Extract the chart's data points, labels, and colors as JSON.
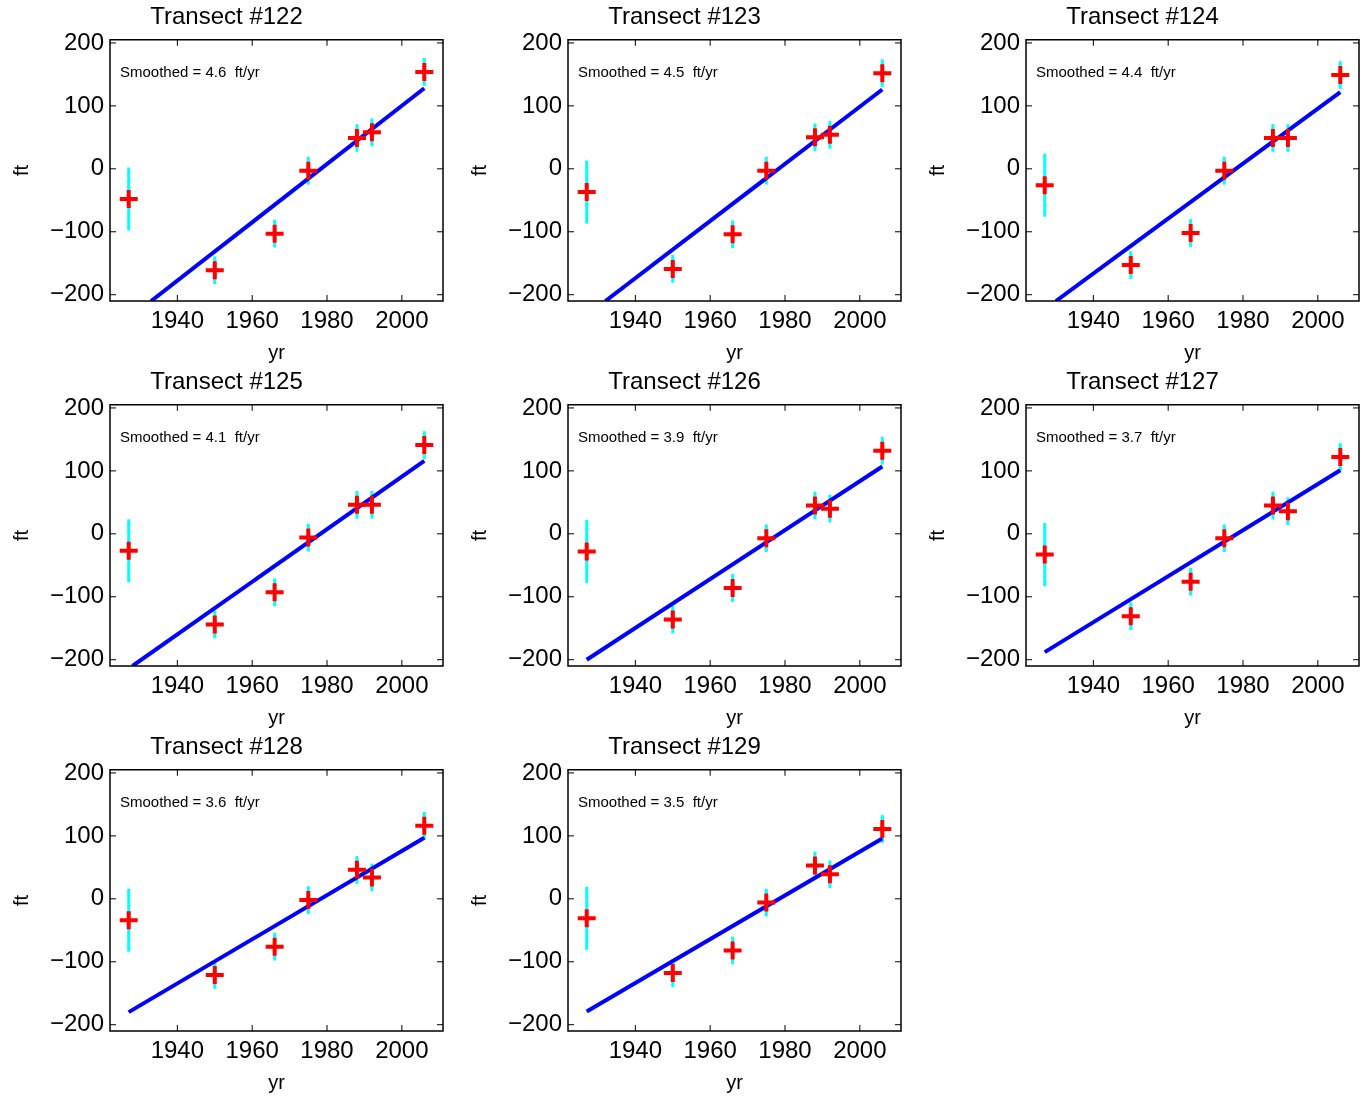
{
  "chart_data": [
    {
      "type": "scatter",
      "title": "Transect #122",
      "xlabel": "yr",
      "ylabel": "ft",
      "annotations": [
        "Smoothed = 4.6  ft/yr"
      ],
      "xlim": [
        1922,
        2011
      ],
      "xticks": [
        1940,
        1960,
        1980,
        2000
      ],
      "ylim": [
        -210,
        205
      ],
      "yticks": [
        -200,
        -100,
        0,
        100,
        200
      ],
      "grid": false,
      "legend": false,
      "series": [
        {
          "color": "#ff0000",
          "marker": "cross",
          "x": [
            1927,
            1950,
            1966,
            1975,
            1988,
            1992,
            2006
          ],
          "values": [
            -48,
            -161,
            -103,
            -3,
            49,
            58,
            154
          ],
          "errors": [
            50,
            22,
            22,
            22,
            22,
            22,
            22
          ]
        },
        {
          "type": "line",
          "color": "#0000ff",
          "marker": "none",
          "x": [
            1933,
            2006
          ],
          "values": [
            -210,
            128
          ]
        }
      ]
    },
    {
      "type": "scatter",
      "title": "Transect #123",
      "xlabel": "yr",
      "ylabel": "ft",
      "annotations": [
        "Smoothed = 4.5  ft/yr"
      ],
      "xlim": [
        1922,
        2011
      ],
      "xticks": [
        1940,
        1960,
        1980,
        2000
      ],
      "ylim": [
        -210,
        205
      ],
      "yticks": [
        -200,
        -100,
        0,
        100,
        200
      ],
      "grid": false,
      "legend": false,
      "series": [
        {
          "color": "#ff0000",
          "marker": "cross",
          "x": [
            1927,
            1950,
            1966,
            1975,
            1988,
            1992,
            2006
          ],
          "values": [
            -37,
            -159,
            -104,
            -3,
            50,
            54,
            152
          ],
          "errors": [
            50,
            22,
            22,
            22,
            22,
            22,
            22
          ]
        },
        {
          "type": "line",
          "color": "#0000ff",
          "marker": "none",
          "x": [
            1932,
            2006
          ],
          "values": [
            -210,
            126
          ]
        }
      ]
    },
    {
      "type": "scatter",
      "title": "Transect #124",
      "xlabel": "yr",
      "ylabel": "ft",
      "annotations": [
        "Smoothed = 4.4  ft/yr"
      ],
      "xlim": [
        1922,
        2011
      ],
      "xticks": [
        1940,
        1960,
        1980,
        2000
      ],
      "ylim": [
        -210,
        205
      ],
      "yticks": [
        -200,
        -100,
        0,
        100,
        200
      ],
      "grid": false,
      "legend": false,
      "series": [
        {
          "color": "#ff0000",
          "marker": "cross",
          "x": [
            1927,
            1950,
            1966,
            1975,
            1988,
            1992,
            2006
          ],
          "values": [
            -26,
            -153,
            -102,
            -3,
            49,
            49,
            149
          ],
          "errors": [
            50,
            22,
            22,
            22,
            22,
            22,
            22
          ]
        },
        {
          "type": "line",
          "color": "#0000ff",
          "marker": "none",
          "x": [
            1930,
            2006
          ],
          "values": [
            -210,
            122
          ]
        }
      ]
    },
    {
      "type": "scatter",
      "title": "Transect #125",
      "xlabel": "yr",
      "ylabel": "ft",
      "annotations": [
        "Smoothed = 4.1  ft/yr"
      ],
      "xlim": [
        1922,
        2011
      ],
      "xticks": [
        1940,
        1960,
        1980,
        2000
      ],
      "ylim": [
        -210,
        205
      ],
      "yticks": [
        -200,
        -100,
        0,
        100,
        200
      ],
      "grid": false,
      "legend": false,
      "series": [
        {
          "color": "#ff0000",
          "marker": "cross",
          "x": [
            1927,
            1950,
            1966,
            1975,
            1988,
            1992,
            2006
          ],
          "values": [
            -27,
            -144,
            -93,
            -6,
            46,
            46,
            141
          ],
          "errors": [
            50,
            22,
            22,
            22,
            22,
            22,
            22
          ]
        },
        {
          "type": "line",
          "color": "#0000ff",
          "marker": "none",
          "x": [
            1928,
            2006
          ],
          "values": [
            -210,
            116
          ]
        }
      ]
    },
    {
      "type": "scatter",
      "title": "Transect #126",
      "xlabel": "yr",
      "ylabel": "ft",
      "annotations": [
        "Smoothed = 3.9  ft/yr"
      ],
      "xlim": [
        1922,
        2011
      ],
      "xticks": [
        1940,
        1960,
        1980,
        2000
      ],
      "ylim": [
        -210,
        205
      ],
      "yticks": [
        -200,
        -100,
        0,
        100,
        200
      ],
      "grid": false,
      "legend": false,
      "series": [
        {
          "color": "#ff0000",
          "marker": "cross",
          "x": [
            1927,
            1950,
            1966,
            1975,
            1988,
            1992,
            2006
          ],
          "values": [
            -28,
            -136,
            -86,
            -7,
            45,
            40,
            132
          ],
          "errors": [
            50,
            22,
            22,
            22,
            22,
            22,
            22
          ]
        },
        {
          "type": "line",
          "color": "#0000ff",
          "marker": "none",
          "x": [
            1927,
            2006
          ],
          "values": [
            -200,
            107
          ]
        }
      ]
    },
    {
      "type": "scatter",
      "title": "Transect #127",
      "xlabel": "yr",
      "ylabel": "ft",
      "annotations": [
        "Smoothed = 3.7  ft/yr"
      ],
      "xlim": [
        1922,
        2011
      ],
      "xticks": [
        1940,
        1960,
        1980,
        2000
      ],
      "ylim": [
        -210,
        205
      ],
      "yticks": [
        -200,
        -100,
        0,
        100,
        200
      ],
      "grid": false,
      "legend": false,
      "series": [
        {
          "color": "#ff0000",
          "marker": "cross",
          "x": [
            1927,
            1950,
            1966,
            1975,
            1988,
            1992,
            2006
          ],
          "values": [
            -33,
            -131,
            -76,
            -7,
            45,
            36,
            122
          ],
          "errors": [
            50,
            22,
            22,
            22,
            22,
            22,
            22
          ]
        },
        {
          "type": "line",
          "color": "#0000ff",
          "marker": "none",
          "x": [
            1927,
            2006
          ],
          "values": [
            -188,
            101
          ]
        }
      ]
    },
    {
      "type": "scatter",
      "title": "Transect #128",
      "xlabel": "yr",
      "ylabel": "ft",
      "annotations": [
        "Smoothed = 3.6  ft/yr"
      ],
      "xlim": [
        1922,
        2011
      ],
      "xticks": [
        1940,
        1960,
        1980,
        2000
      ],
      "ylim": [
        -210,
        205
      ],
      "yticks": [
        -200,
        -100,
        0,
        100,
        200
      ],
      "grid": false,
      "legend": false,
      "series": [
        {
          "color": "#ff0000",
          "marker": "cross",
          "x": [
            1927,
            1950,
            1966,
            1975,
            1988,
            1992,
            2006
          ],
          "values": [
            -34,
            -121,
            -76,
            -2,
            46,
            34,
            116
          ],
          "errors": [
            50,
            22,
            22,
            22,
            22,
            22,
            22
          ]
        },
        {
          "type": "line",
          "color": "#0000ff",
          "marker": "none",
          "x": [
            1927,
            2006
          ],
          "values": [
            -180,
            97
          ]
        }
      ]
    },
    {
      "type": "scatter",
      "title": "Transect #129",
      "xlabel": "yr",
      "ylabel": "ft",
      "annotations": [
        "Smoothed = 3.5  ft/yr"
      ],
      "xlim": [
        1922,
        2011
      ],
      "xticks": [
        1940,
        1960,
        1980,
        2000
      ],
      "ylim": [
        -210,
        205
      ],
      "yticks": [
        -200,
        -100,
        0,
        100,
        200
      ],
      "grid": false,
      "legend": false,
      "series": [
        {
          "color": "#ff0000",
          "marker": "cross",
          "x": [
            1927,
            1950,
            1966,
            1975,
            1988,
            1992,
            2006
          ],
          "values": [
            -31,
            -118,
            -82,
            -6,
            53,
            39,
            111
          ],
          "errors": [
            50,
            22,
            22,
            22,
            22,
            22,
            22
          ]
        },
        {
          "type": "line",
          "color": "#0000ff",
          "marker": "none",
          "x": [
            1927,
            2006
          ],
          "values": [
            -179,
            96
          ]
        }
      ]
    }
  ]
}
